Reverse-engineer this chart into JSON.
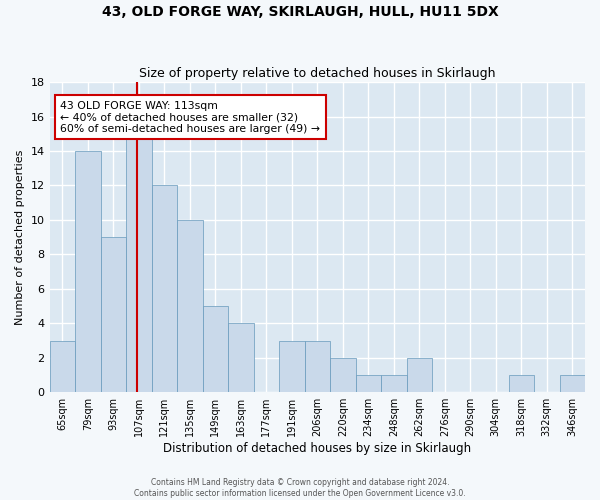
{
  "title": "43, OLD FORGE WAY, SKIRLAUGH, HULL, HU11 5DX",
  "subtitle": "Size of property relative to detached houses in Skirlaugh",
  "xlabel": "Distribution of detached houses by size in Skirlaugh",
  "ylabel": "Number of detached properties",
  "bar_color": "#c9d9ea",
  "bar_edge_color": "#6699bb",
  "bin_labels": [
    "65sqm",
    "79sqm",
    "93sqm",
    "107sqm",
    "121sqm",
    "135sqm",
    "149sqm",
    "163sqm",
    "177sqm",
    "191sqm",
    "206sqm",
    "220sqm",
    "234sqm",
    "248sqm",
    "262sqm",
    "276sqm",
    "290sqm",
    "304sqm",
    "318sqm",
    "332sqm",
    "346sqm"
  ],
  "values": [
    3,
    14,
    9,
    15,
    12,
    10,
    5,
    4,
    0,
    3,
    3,
    2,
    1,
    1,
    2,
    0,
    0,
    0,
    1,
    0,
    1
  ],
  "annotation_text": "43 OLD FORGE WAY: 113sqm\n← 40% of detached houses are smaller (32)\n60% of semi-detached houses are larger (49) →",
  "annotation_box_color": "#ffffff",
  "annotation_box_edge_color": "#cc0000",
  "vline_x": 3.43,
  "vline_color": "#cc0000",
  "ylim": [
    0,
    18
  ],
  "yticks": [
    0,
    2,
    4,
    6,
    8,
    10,
    12,
    14,
    16,
    18
  ],
  "grid_color": "#ffffff",
  "bg_color": "#dce8f2",
  "fig_color": "#f4f8fb",
  "footer_line1": "Contains HM Land Registry data © Crown copyright and database right 2024.",
  "footer_line2": "Contains public sector information licensed under the Open Government Licence v3.0."
}
